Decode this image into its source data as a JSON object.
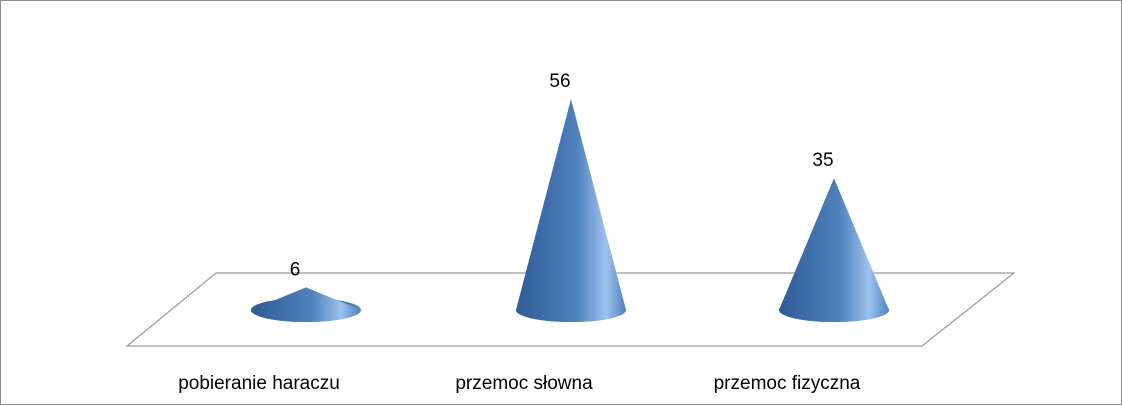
{
  "chart_data": {
    "type": "bar",
    "shape": "cone-3d",
    "title": "",
    "xlabel": "",
    "ylabel": "",
    "categories": [
      "pobieranie haraczu",
      "przemoc słowna",
      "przemoc fizyczna"
    ],
    "values": [
      6,
      56,
      35
    ],
    "data_labels": [
      "6",
      "56",
      "35"
    ],
    "ylim": [
      0,
      56
    ],
    "grid": false,
    "legend": "none",
    "colors": {
      "cone_dark": "#2e5b96",
      "cone_mid": "#4f81bd",
      "cone_light": "#9cc2ef",
      "floor_stroke": "#9a9a9a",
      "frame_stroke": "#8c8c8c"
    }
  }
}
